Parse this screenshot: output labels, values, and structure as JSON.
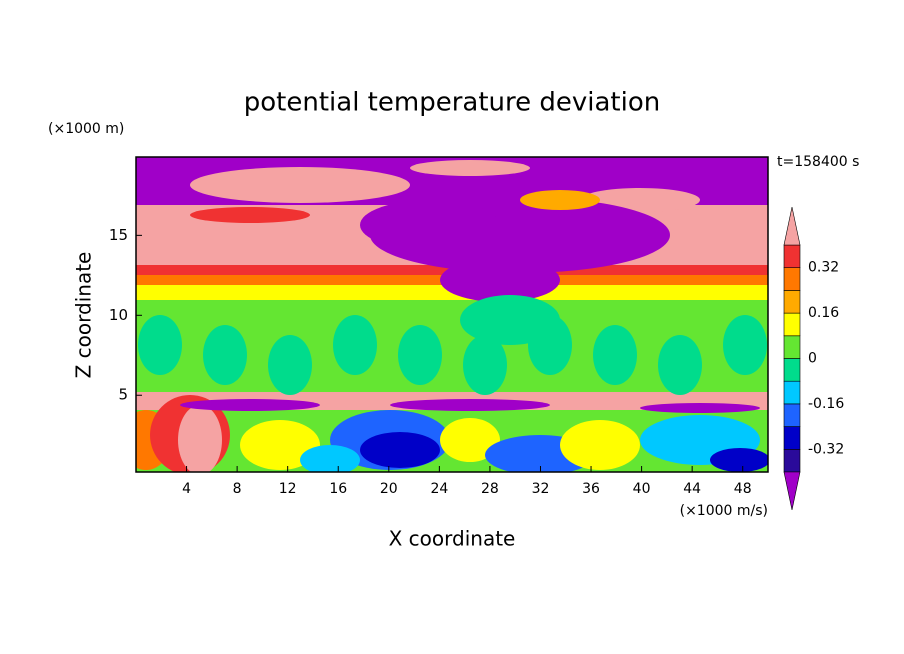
{
  "chart_data": {
    "type": "contour",
    "title": "potential temperature deviation",
    "xlabel": "X coordinate",
    "ylabel": "Z coordinate",
    "xunit": "(×1000 m/s)",
    "yunit": "(×1000 m)",
    "annotation": "t=158400 s",
    "xlim": [
      0,
      50
    ],
    "ylim": [
      0.2,
      19.9
    ],
    "xticks": [
      4,
      8,
      12,
      16,
      20,
      24,
      28,
      32,
      36,
      40,
      44,
      48
    ],
    "yticks": [
      5,
      10,
      15
    ],
    "colorbar": {
      "levels": [
        -0.4,
        -0.32,
        -0.24,
        -0.16,
        -0.08,
        0,
        0.08,
        0.16,
        0.24,
        0.32,
        0.4
      ],
      "labels": [
        -0.32,
        -0.16,
        0,
        0.16,
        0.32
      ],
      "colors": [
        "#a000c8",
        "#2a0a9a",
        "#0000c8",
        "#1e64ff",
        "#00c8ff",
        "#00dc8c",
        "#64e632",
        "#ffff00",
        "#ffaa00",
        "#ff7800",
        "#f03232",
        "#f5a3a3"
      ]
    }
  }
}
